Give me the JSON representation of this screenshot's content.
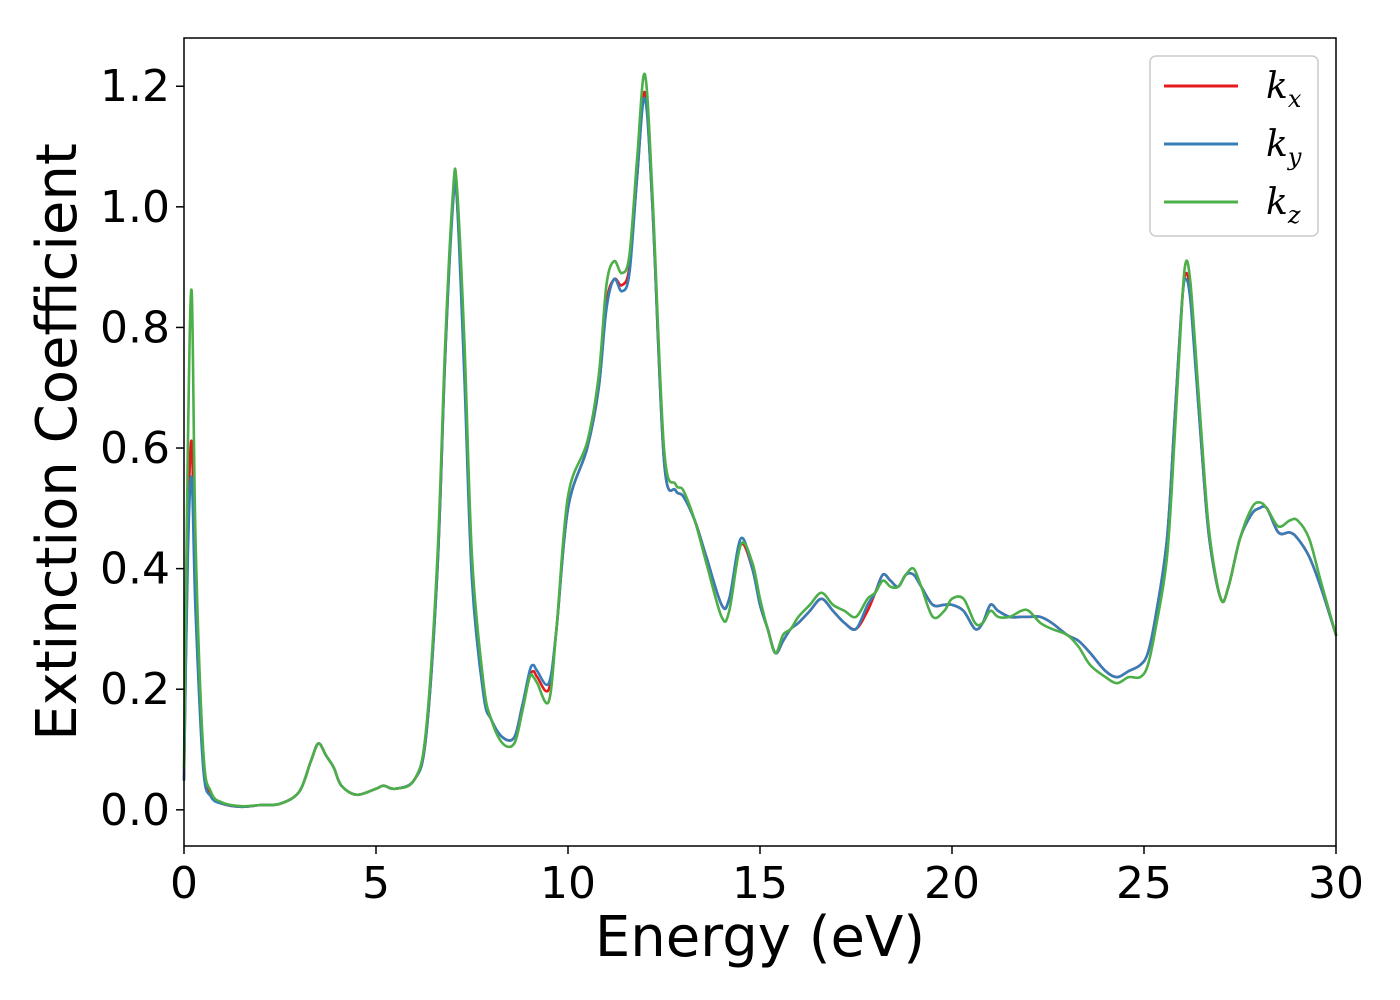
{
  "chart_data": {
    "type": "line",
    "title": "",
    "xlabel": "Energy (eV)",
    "ylabel": "Extinction Coefficient",
    "xlim": [
      0,
      30
    ],
    "ylim": [
      -0.06,
      1.28
    ],
    "xticks": [
      0,
      5,
      10,
      15,
      20,
      25,
      30
    ],
    "xtick_labels": [
      "0",
      "5",
      "10",
      "15",
      "20",
      "25",
      "30"
    ],
    "yticks": [
      0.0,
      0.2,
      0.4,
      0.6,
      0.8,
      1.0,
      1.2
    ],
    "ytick_labels": [
      "0.0",
      "0.2",
      "0.4",
      "0.6",
      "0.8",
      "1.0",
      "1.2"
    ],
    "grid": false,
    "legend_position": "top-right",
    "series": [
      {
        "name": "k_x",
        "legend_base": "k",
        "legend_sub": "x",
        "color": "#e41a1c",
        "x": [
          0,
          0.1,
          0.2,
          0.3,
          0.5,
          0.7,
          1.0,
          1.5,
          2.0,
          2.5,
          3.0,
          3.3,
          3.5,
          3.7,
          3.9,
          4.1,
          4.5,
          5.0,
          5.2,
          5.5,
          6.0,
          6.3,
          6.6,
          6.8,
          7.0,
          7.1,
          7.3,
          7.5,
          7.8,
          8.0,
          8.3,
          8.6,
          8.8,
          9.0,
          9.1,
          9.2,
          9.5,
          9.7,
          10.0,
          10.5,
          10.8,
          11.0,
          11.2,
          11.4,
          11.6,
          11.8,
          12.0,
          12.2,
          12.5,
          12.8,
          13.0,
          13.3,
          13.6,
          14.0,
          14.2,
          14.5,
          14.8,
          15.0,
          15.2,
          15.4,
          15.6,
          15.8,
          16.0,
          16.3,
          16.6,
          16.9,
          17.2,
          17.5,
          17.8,
          18.0,
          18.2,
          18.4,
          18.6,
          18.8,
          19.0,
          19.2,
          19.5,
          19.8,
          20.0,
          20.3,
          20.6,
          20.8,
          21.0,
          21.2,
          21.5,
          21.8,
          22.0,
          22.3,
          22.6,
          23.0,
          23.3,
          23.6,
          24.0,
          24.3,
          24.6,
          24.9,
          25.1,
          25.3,
          25.6,
          25.8,
          26.0,
          26.1,
          26.2,
          26.3,
          26.5,
          26.7,
          27.0,
          27.2,
          27.5,
          27.8,
          28.0,
          28.2,
          28.5,
          28.8,
          29.0,
          29.3,
          29.6,
          30.0
        ],
        "y": [
          0.05,
          0.45,
          0.61,
          0.35,
          0.08,
          0.025,
          0.01,
          0.005,
          0.008,
          0.01,
          0.03,
          0.08,
          0.11,
          0.09,
          0.07,
          0.04,
          0.025,
          0.035,
          0.04,
          0.035,
          0.05,
          0.12,
          0.4,
          0.75,
          1.01,
          1.02,
          0.75,
          0.4,
          0.2,
          0.15,
          0.12,
          0.12,
          0.17,
          0.22,
          0.23,
          0.22,
          0.2,
          0.3,
          0.5,
          0.6,
          0.7,
          0.84,
          0.88,
          0.87,
          0.9,
          1.05,
          1.19,
          1.0,
          0.58,
          0.53,
          0.52,
          0.48,
          0.42,
          0.34,
          0.35,
          0.44,
          0.4,
          0.34,
          0.3,
          0.26,
          0.28,
          0.3,
          0.31,
          0.33,
          0.35,
          0.33,
          0.31,
          0.3,
          0.33,
          0.36,
          0.39,
          0.38,
          0.37,
          0.39,
          0.39,
          0.37,
          0.34,
          0.34,
          0.34,
          0.33,
          0.3,
          0.31,
          0.34,
          0.33,
          0.32,
          0.32,
          0.32,
          0.32,
          0.31,
          0.29,
          0.28,
          0.26,
          0.23,
          0.22,
          0.23,
          0.24,
          0.26,
          0.32,
          0.45,
          0.65,
          0.85,
          0.89,
          0.86,
          0.78,
          0.6,
          0.45,
          0.35,
          0.37,
          0.45,
          0.49,
          0.5,
          0.5,
          0.46,
          0.46,
          0.45,
          0.42,
          0.37,
          0.29
        ]
      },
      {
        "name": "k_y",
        "legend_base": "k",
        "legend_sub": "y",
        "color": "#377eb8",
        "x": [
          0,
          0.1,
          0.2,
          0.3,
          0.5,
          0.7,
          1.0,
          1.5,
          2.0,
          2.5,
          3.0,
          3.3,
          3.5,
          3.7,
          3.9,
          4.1,
          4.5,
          5.0,
          5.2,
          5.5,
          6.0,
          6.3,
          6.6,
          6.8,
          7.0,
          7.1,
          7.3,
          7.5,
          7.8,
          8.0,
          8.3,
          8.6,
          8.8,
          9.0,
          9.1,
          9.2,
          9.5,
          9.7,
          10.0,
          10.5,
          10.8,
          11.0,
          11.2,
          11.4,
          11.6,
          11.8,
          12.0,
          12.2,
          12.5,
          12.8,
          13.0,
          13.3,
          13.6,
          14.0,
          14.2,
          14.5,
          14.8,
          15.0,
          15.2,
          15.4,
          15.6,
          15.8,
          16.0,
          16.3,
          16.6,
          16.9,
          17.2,
          17.5,
          17.8,
          18.0,
          18.2,
          18.4,
          18.6,
          18.8,
          19.0,
          19.2,
          19.5,
          19.8,
          20.0,
          20.3,
          20.6,
          20.8,
          21.0,
          21.2,
          21.5,
          21.8,
          22.0,
          22.3,
          22.6,
          23.0,
          23.3,
          23.6,
          24.0,
          24.3,
          24.6,
          24.9,
          25.1,
          25.3,
          25.6,
          25.8,
          26.0,
          26.1,
          26.2,
          26.3,
          26.5,
          26.7,
          27.0,
          27.2,
          27.5,
          27.8,
          28.0,
          28.2,
          28.5,
          28.8,
          29.0,
          29.3,
          29.6,
          30.0
        ],
        "y": [
          0.05,
          0.42,
          0.55,
          0.33,
          0.07,
          0.022,
          0.01,
          0.005,
          0.008,
          0.01,
          0.03,
          0.08,
          0.11,
          0.09,
          0.07,
          0.04,
          0.025,
          0.035,
          0.04,
          0.035,
          0.05,
          0.12,
          0.4,
          0.75,
          1.0,
          1.02,
          0.72,
          0.38,
          0.19,
          0.15,
          0.12,
          0.12,
          0.17,
          0.23,
          0.24,
          0.23,
          0.21,
          0.3,
          0.5,
          0.6,
          0.7,
          0.83,
          0.88,
          0.86,
          0.89,
          1.05,
          1.18,
          1.0,
          0.58,
          0.53,
          0.52,
          0.48,
          0.42,
          0.34,
          0.35,
          0.45,
          0.4,
          0.34,
          0.3,
          0.26,
          0.28,
          0.3,
          0.31,
          0.33,
          0.35,
          0.33,
          0.31,
          0.3,
          0.34,
          0.36,
          0.39,
          0.38,
          0.37,
          0.39,
          0.39,
          0.37,
          0.34,
          0.34,
          0.34,
          0.33,
          0.3,
          0.31,
          0.34,
          0.33,
          0.32,
          0.32,
          0.32,
          0.32,
          0.31,
          0.29,
          0.28,
          0.26,
          0.23,
          0.22,
          0.23,
          0.24,
          0.26,
          0.32,
          0.45,
          0.65,
          0.85,
          0.88,
          0.85,
          0.77,
          0.6,
          0.45,
          0.35,
          0.37,
          0.45,
          0.49,
          0.5,
          0.5,
          0.46,
          0.46,
          0.45,
          0.42,
          0.37,
          0.29
        ]
      },
      {
        "name": "k_z",
        "legend_base": "k",
        "legend_sub": "z",
        "color": "#4daf4a",
        "x": [
          0,
          0.1,
          0.2,
          0.3,
          0.5,
          0.7,
          1.0,
          1.5,
          2.0,
          2.5,
          3.0,
          3.3,
          3.5,
          3.7,
          3.9,
          4.1,
          4.5,
          5.0,
          5.2,
          5.5,
          6.0,
          6.3,
          6.6,
          6.8,
          7.0,
          7.1,
          7.3,
          7.5,
          7.8,
          8.0,
          8.3,
          8.6,
          8.8,
          9.0,
          9.1,
          9.2,
          9.5,
          9.7,
          10.0,
          10.5,
          10.8,
          11.0,
          11.2,
          11.4,
          11.6,
          11.8,
          12.0,
          12.2,
          12.5,
          12.8,
          13.0,
          13.3,
          13.6,
          14.0,
          14.2,
          14.5,
          14.8,
          15.0,
          15.2,
          15.4,
          15.6,
          15.8,
          16.0,
          16.3,
          16.6,
          16.9,
          17.2,
          17.5,
          17.8,
          18.0,
          18.2,
          18.4,
          18.6,
          18.8,
          19.0,
          19.2,
          19.5,
          19.8,
          20.0,
          20.3,
          20.6,
          20.8,
          21.0,
          21.2,
          21.5,
          21.8,
          22.0,
          22.3,
          22.6,
          23.0,
          23.3,
          23.6,
          24.0,
          24.3,
          24.6,
          24.9,
          25.1,
          25.3,
          25.6,
          25.8,
          26.0,
          26.1,
          26.2,
          26.3,
          26.5,
          26.7,
          27.0,
          27.2,
          27.5,
          27.8,
          28.0,
          28.2,
          28.5,
          28.8,
          29.0,
          29.3,
          29.6,
          30.0
        ],
        "y": [
          0.07,
          0.6,
          0.86,
          0.45,
          0.1,
          0.03,
          0.012,
          0.006,
          0.008,
          0.01,
          0.03,
          0.08,
          0.11,
          0.09,
          0.07,
          0.04,
          0.025,
          0.035,
          0.04,
          0.035,
          0.05,
          0.13,
          0.42,
          0.77,
          1.02,
          1.04,
          0.78,
          0.42,
          0.21,
          0.15,
          0.11,
          0.11,
          0.16,
          0.22,
          0.22,
          0.21,
          0.18,
          0.3,
          0.52,
          0.61,
          0.72,
          0.87,
          0.91,
          0.89,
          0.92,
          1.08,
          1.22,
          1.02,
          0.6,
          0.54,
          0.53,
          0.48,
          0.41,
          0.32,
          0.33,
          0.44,
          0.41,
          0.35,
          0.3,
          0.26,
          0.29,
          0.3,
          0.32,
          0.34,
          0.36,
          0.34,
          0.33,
          0.32,
          0.35,
          0.36,
          0.38,
          0.37,
          0.37,
          0.39,
          0.4,
          0.37,
          0.32,
          0.33,
          0.35,
          0.35,
          0.31,
          0.31,
          0.33,
          0.32,
          0.32,
          0.33,
          0.33,
          0.31,
          0.3,
          0.29,
          0.27,
          0.24,
          0.22,
          0.21,
          0.22,
          0.22,
          0.24,
          0.3,
          0.42,
          0.62,
          0.85,
          0.91,
          0.88,
          0.8,
          0.62,
          0.46,
          0.35,
          0.37,
          0.45,
          0.5,
          0.51,
          0.5,
          0.47,
          0.48,
          0.48,
          0.45,
          0.38,
          0.29
        ]
      }
    ]
  }
}
